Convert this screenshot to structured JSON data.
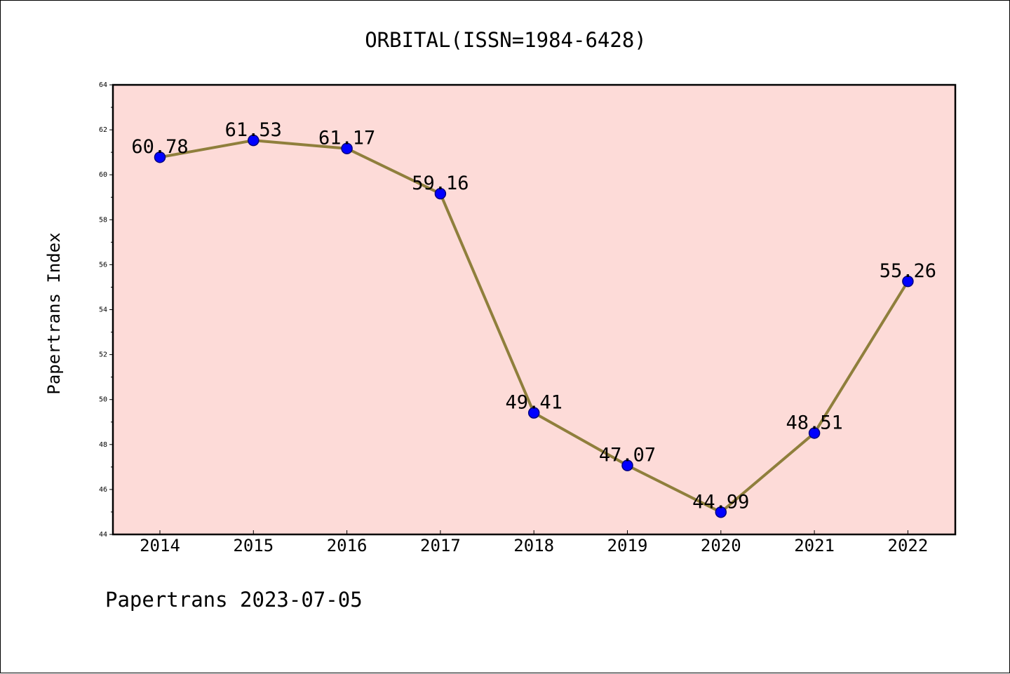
{
  "chart_data": {
    "type": "line",
    "title": "ORBITAL(ISSN=1984-6428)",
    "ylabel": "Papertrans Index",
    "xlabel": "",
    "categories": [
      "2014",
      "2015",
      "2016",
      "2017",
      "2018",
      "2019",
      "2020",
      "2021",
      "2022"
    ],
    "values": [
      60.78,
      61.53,
      61.17,
      59.16,
      49.41,
      47.07,
      44.99,
      48.51,
      55.26
    ],
    "value_labels": [
      "60.78",
      "61.53",
      "61.17",
      "59.16",
      "49.41",
      "47.07",
      "44.99",
      "48.51",
      "55.26"
    ],
    "ylim": [
      44,
      64
    ],
    "yticks": [
      44,
      46,
      48,
      50,
      52,
      54,
      56,
      58,
      60,
      62,
      64
    ],
    "ytick_labels": [
      "44",
      "46",
      "48",
      "50",
      "52",
      "54",
      "56",
      "58",
      "60",
      "62",
      "64"
    ],
    "grid": false,
    "colors": {
      "plot_background": "#fddbd8",
      "line": "#8f7f3c",
      "marker_fill": "#0000ff",
      "marker_edge": "#000080"
    }
  },
  "footer": {
    "text": "Papertrans 2023-07-05"
  }
}
